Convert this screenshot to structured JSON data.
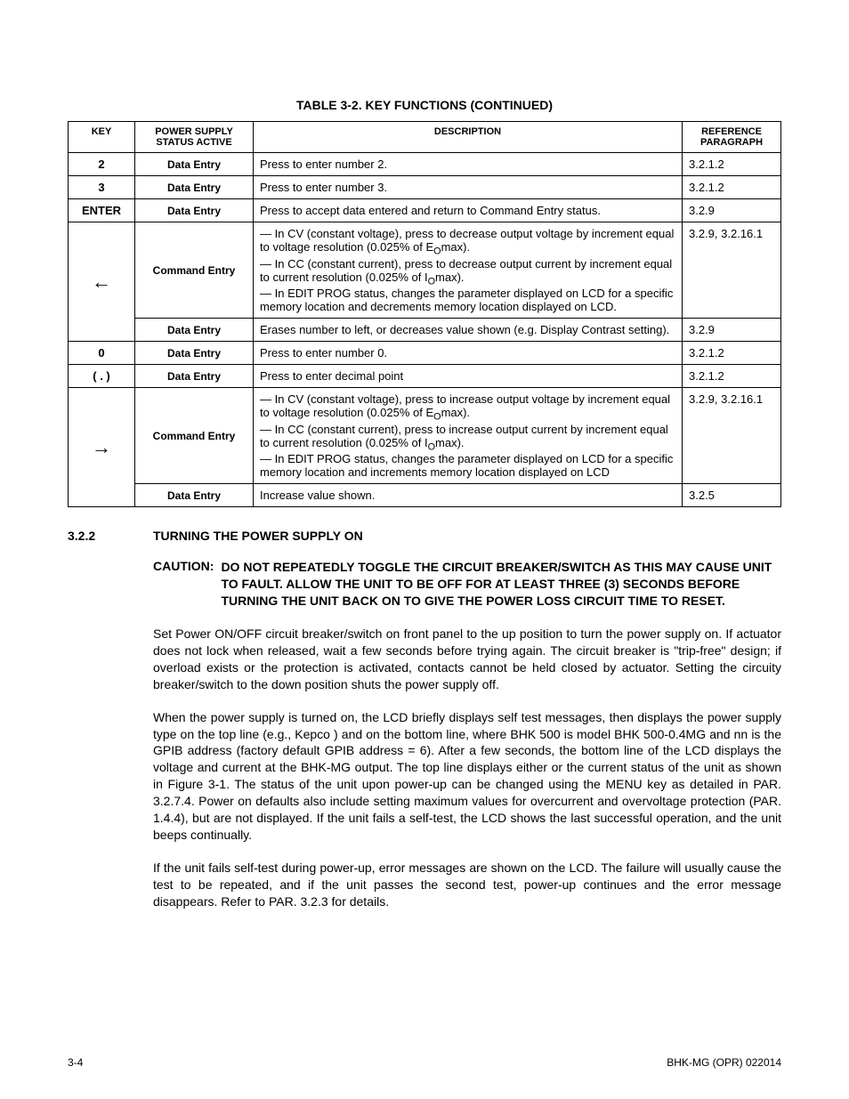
{
  "table": {
    "title": "TABLE 3-2.  KEY FUNCTIONS (CONTINUED)",
    "headers": {
      "key": "KEY",
      "status": "POWER SUPPLY STATUS ACTIVE",
      "desc": "DESCRIPTION",
      "ref": "REFERENCE PARAGRAPH"
    },
    "rows": [
      {
        "key": "2",
        "status": "Data Entry",
        "desc": "Press to enter number 2.",
        "ref": "3.2.1.2"
      },
      {
        "key": "3",
        "status": "Data Entry",
        "desc": "Press to enter number 3.",
        "ref": "3.2.1.2"
      },
      {
        "key": "ENTER",
        "status": "Data Entry",
        "desc": "Press to accept data entered and return to Command Entry status.",
        "ref": "3.2.9"
      },
      {
        "key": "←",
        "key_is_arrow": true,
        "key_rowspan": 2,
        "status": "Command Entry",
        "desc_html": "— In CV (constant voltage), press to decrease output voltage by increment equal to voltage resolution (0.025% of E<sub>O</sub>max).<br>— In CC (constant current), press to decrease output current by increment equal to current resolution (0.025% of I<sub>O</sub>max).<br>— In EDIT PROG status, changes the parameter displayed on LCD for a specific memory location and decrements memory location displayed on LCD.",
        "ref": "3.2.9, 3.2.16.1"
      },
      {
        "status": "Data Entry",
        "desc": "Erases number to left, or decreases value shown (e.g. Display Contrast setting).",
        "ref": "3.2.9"
      },
      {
        "key": "0",
        "status": "Data Entry",
        "desc": "Press to enter number 0.",
        "ref": "3.2.1.2"
      },
      {
        "key": "( . )",
        "status": "Data Entry",
        "desc": "Press to enter decimal point",
        "ref": "3.2.1.2"
      },
      {
        "key": "→",
        "key_is_arrow": true,
        "key_rowspan": 2,
        "status": "Command Entry",
        "desc_html": "— In CV (constant voltage), press to increase output voltage by increment equal to voltage resolution (0.025% of E<sub>O</sub>max).<br>— In CC (constant current), press to increase output current by increment equal to current resolution (0.025% of I<sub>O</sub>max).<br>— In EDIT PROG status, changes the parameter displayed on LCD for a specific memory location and increments memory location displayed on LCD",
        "ref": "3.2.9, 3.2.16.1"
      },
      {
        "status": "Data Entry",
        "desc": "Increase value shown.",
        "ref": "3.2.5"
      }
    ]
  },
  "section": {
    "number": "3.2.2",
    "title": "TURNING THE POWER SUPPLY ON"
  },
  "caution": {
    "label": "CAUTION:",
    "text": "DO NOT REPEATEDLY TOGGLE THE CIRCUIT BREAKER/SWITCH AS THIS MAY CAUSE UNIT TO FAULT. ALLOW THE UNIT TO BE OFF FOR AT LEAST THREE (3) SECONDS BEFORE TURNING THE UNIT BACK ON TO GIVE THE POWER LOSS CIRCUIT TIME TO RESET."
  },
  "paragraphs": {
    "p1": "Set Power ON/OFF circuit breaker/switch on front panel to the up position to turn the power supply on. If actuator does not lock when released, wait a few seconds before trying again. The circuit breaker is \"trip-free\" design; if overload exists or the protection is activated, contacts cannot be held closed by actuator. Setting the circuity breaker/switch to the down position shuts the power supply off.",
    "p2": "When the power supply is turned on, the LCD briefly displays self test messages, then displays the power supply type on the top line (e.g., Kepco             ) and                         on the bottom line, where BHK 500 is model BHK 500-0.4MG and nn is the GPIB address (factory default GPIB address = 6). After a few seconds, the bottom line of the LCD displays the voltage and current at the BHK-MG output. The top line displays either      or the current status of the unit as shown in Figure 3-1. The status of the unit upon power-up can be changed using the MENU key as detailed in PAR. 3.2.7.4. Power on defaults also include setting maximum values for overcurrent and overvoltage protection (PAR. 1.4.4), but are not displayed. If the unit fails a self-test, the LCD shows the last successful operation, and the unit beeps continually.",
    "p3": "If the unit fails self-test during power-up, error messages are shown on the LCD. The failure will usually cause the test to be repeated, and if the unit passes the second test, power-up continues and the error message disappears. Refer to PAR. 3.2.3 for details."
  },
  "footer": {
    "left": "3-4",
    "right": "BHK-MG (OPR) 022014"
  }
}
